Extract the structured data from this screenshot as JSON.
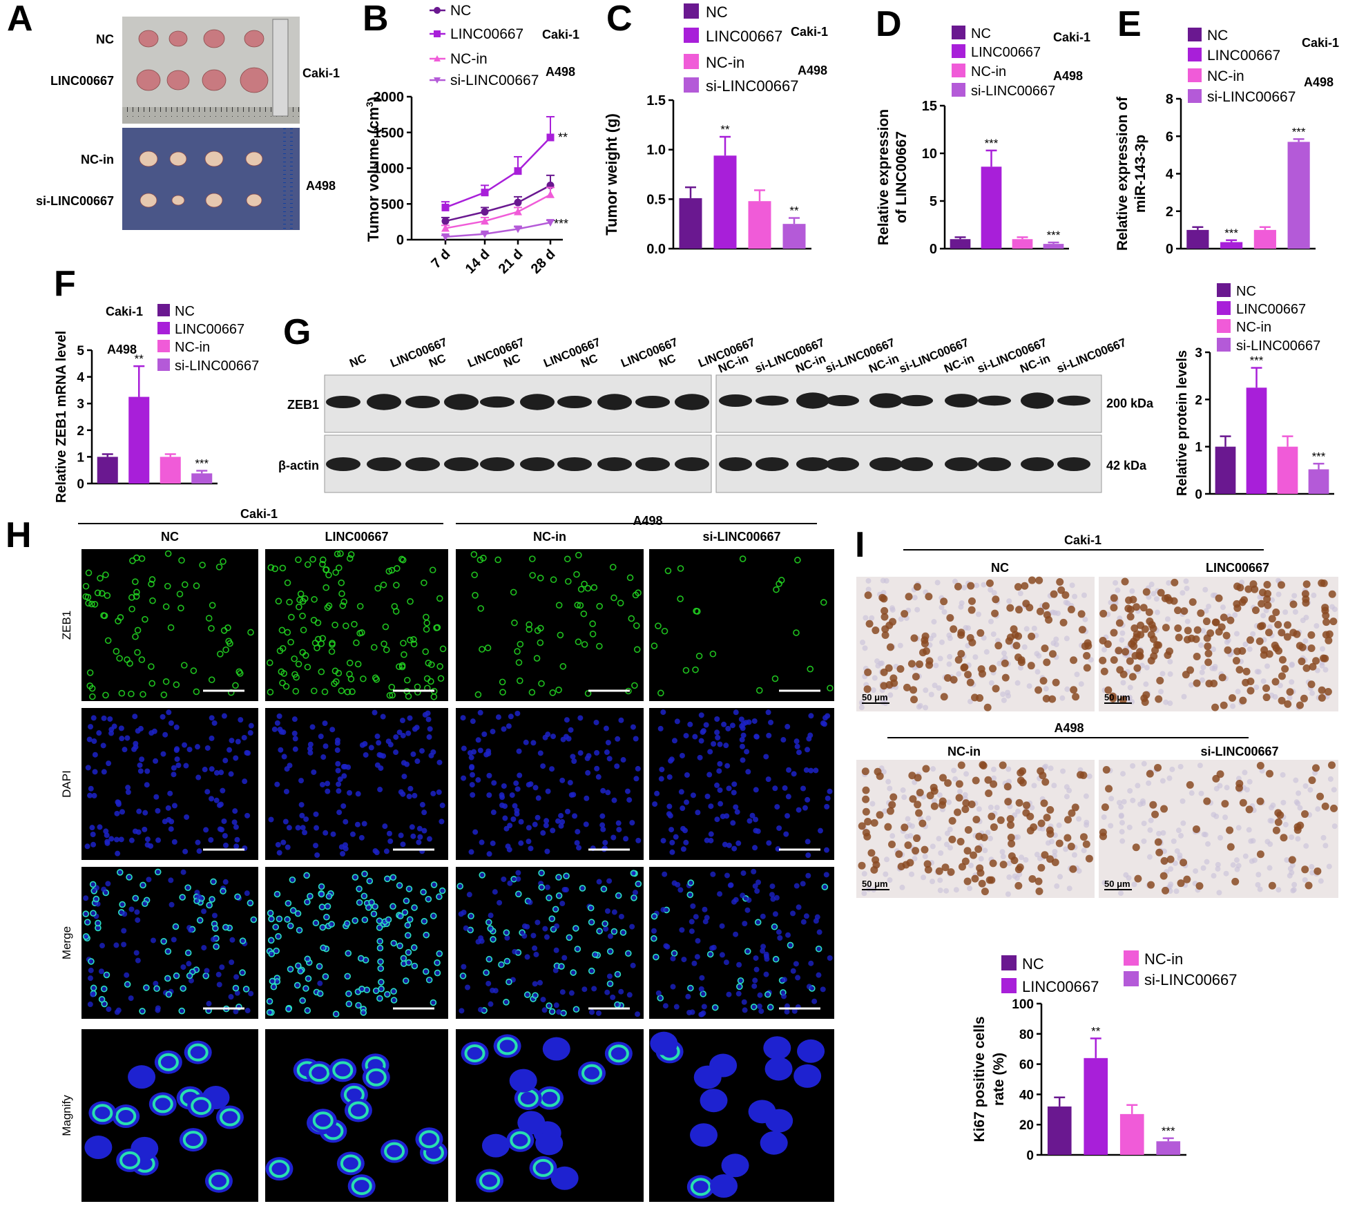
{
  "colors": {
    "NC": "#6a1890",
    "LINC00667": "#a81fd9",
    "NC-in": "#f05bd8",
    "si-LINC00667": "#b45ad8",
    "text": "#000000",
    "green_fluor": "#22d622",
    "blue_fluor": "#1c22e0",
    "ihc_brown": "#8a4a22"
  },
  "icons": [
    "scale-ruler-icon",
    "tumor-icon",
    "western-band-icon"
  ],
  "panels": {
    "A": {
      "letter": "A",
      "rows": [
        "NC",
        "LINC00667",
        "NC-in",
        "si-LINC00667"
      ],
      "cell_lines": [
        "Caki-1",
        "A498"
      ]
    },
    "G": {
      "letter": "G",
      "lanes_left": [
        "NC",
        "LINC00667",
        "NC",
        "LINC00667",
        "NC",
        "LINC00667",
        "NC",
        "LINC00667",
        "NC",
        "LINC00667"
      ],
      "lanes_right": [
        "NC-in",
        "si-LINC00667",
        "NC-in",
        "si-LINC00667",
        "NC-in",
        "si-LINC00667",
        "NC-in",
        "si-LINC00667",
        "NC-in",
        "si-LINC00667"
      ],
      "rows": [
        "ZEB1",
        "β-actin"
      ],
      "sizes": [
        "200 kDa",
        "42 kDa"
      ]
    },
    "H": {
      "letter": "H",
      "cell_lines": [
        "Caki-1",
        "A498"
      ],
      "columns": [
        "NC",
        "LINC00667",
        "NC-in",
        "si-LINC00667"
      ],
      "rows": [
        "ZEB1",
        "DAPI",
        "Merge",
        "Magnify"
      ]
    },
    "I": {
      "letter": "I",
      "cell_lines": [
        "Caki-1",
        "A498"
      ],
      "columns_top": [
        "NC",
        "LINC00667"
      ],
      "columns_bottom": [
        "NC-in",
        "si-LINC00667"
      ],
      "scale": "50 μm"
    }
  },
  "chart_data": [
    {
      "id": "B",
      "letter": "B",
      "type": "line",
      "x": [
        "7 d",
        "14 d",
        "21 d",
        "28 d"
      ],
      "ylabel": "Tumor volume (cm3)",
      "ylabel_main": "Tumor volume (cm",
      "ylabel_sup": "3",
      "ylabel_end": ")",
      "ylim": [
        0,
        2000
      ],
      "yticks": [
        "0",
        "500",
        "1000",
        "1500",
        "2000"
      ],
      "legend": [
        "NC",
        "LINC00667",
        "NC-in",
        "si-LINC00667"
      ],
      "legend_groups": [
        "Caki-1",
        "A498"
      ],
      "series": [
        {
          "name": "NC",
          "values": [
            260,
            390,
            520,
            760
          ],
          "err": [
            50,
            60,
            80,
            140
          ]
        },
        {
          "name": "LINC00667",
          "values": [
            450,
            660,
            960,
            1430
          ],
          "err": [
            80,
            100,
            200,
            290
          ]
        },
        {
          "name": "NC-in",
          "values": [
            160,
            260,
            390,
            630
          ],
          "err": [
            40,
            50,
            60,
            100
          ]
        },
        {
          "name": "si-LINC00667",
          "values": [
            40,
            80,
            150,
            240
          ],
          "err": [
            20,
            20,
            30,
            30
          ]
        }
      ],
      "sig": [
        "**",
        "***"
      ]
    },
    {
      "id": "C",
      "letter": "C",
      "type": "bar",
      "categories": [
        "NC",
        "LINC00667",
        "NC-in",
        "si-LINC00667"
      ],
      "values": [
        0.51,
        0.94,
        0.48,
        0.25
      ],
      "err": [
        0.11,
        0.19,
        0.11,
        0.06
      ],
      "sig": [
        "",
        "**",
        "",
        "**"
      ],
      "ylabel": "Tumor weight (g)",
      "ylim": [
        0,
        1.5
      ],
      "yticks": [
        "0.0",
        "0.5",
        "1.0",
        "1.5"
      ],
      "legend_groups": [
        "Caki-1",
        "A498"
      ]
    },
    {
      "id": "D",
      "letter": "D",
      "type": "bar",
      "categories": [
        "NC",
        "LINC00667",
        "NC-in",
        "si-LINC00667"
      ],
      "values": [
        1.0,
        8.6,
        1.0,
        0.5
      ],
      "err": [
        0.2,
        1.7,
        0.2,
        0.15
      ],
      "sig": [
        "",
        "***",
        "",
        "***"
      ],
      "ylabel_lines": [
        "Relative expression",
        "of LINC00667"
      ],
      "ylim": [
        0,
        15
      ],
      "yticks": [
        "0",
        "5",
        "10",
        "15"
      ],
      "legend_groups": [
        "Caki-1",
        "A498"
      ]
    },
    {
      "id": "E",
      "letter": "E",
      "type": "bar",
      "categories": [
        "NC",
        "LINC00667",
        "NC-in",
        "si-LINC00667"
      ],
      "values": [
        1.0,
        0.35,
        1.0,
        5.7
      ],
      "err": [
        0.15,
        0.1,
        0.15,
        0.15
      ],
      "sig": [
        "",
        "***",
        "",
        "***"
      ],
      "ylabel_lines": [
        "Relative expression of",
        "miR-143-3p"
      ],
      "ylim": [
        0,
        8
      ],
      "yticks": [
        "0",
        "2",
        "4",
        "6",
        "8"
      ],
      "legend_groups": [
        "Caki-1",
        "A498"
      ]
    },
    {
      "id": "F",
      "letter": "F",
      "type": "bar",
      "categories": [
        "NC",
        "LINC00667",
        "NC-in",
        "si-LINC00667"
      ],
      "values": [
        1.0,
        3.25,
        1.0,
        0.38
      ],
      "err": [
        0.1,
        1.15,
        0.1,
        0.1
      ],
      "sig": [
        "",
        "**",
        "",
        "***"
      ],
      "ylabel": "Relative ZEB1 mRNA level",
      "ylim": [
        0,
        5
      ],
      "yticks": [
        "0",
        "1",
        "2",
        "3",
        "4",
        "5"
      ],
      "legend_groups": [
        "Caki-1",
        "A498"
      ]
    },
    {
      "id": "G2",
      "type": "bar",
      "categories": [
        "NC",
        "LINC00667",
        "NC-in",
        "si-LINC00667"
      ],
      "values": [
        1.0,
        2.25,
        1.0,
        0.52
      ],
      "err": [
        0.22,
        0.42,
        0.22,
        0.12
      ],
      "sig": [
        "",
        "***",
        "",
        "***"
      ],
      "ylabel": "Relative protein levels",
      "ylim": [
        0,
        3
      ],
      "yticks": [
        "0",
        "1",
        "2",
        "3"
      ]
    },
    {
      "id": "I2",
      "type": "bar",
      "categories": [
        "NC",
        "LINC00667",
        "NC-in",
        "si-LINC00667"
      ],
      "values": [
        32,
        64,
        27,
        9
      ],
      "err": [
        6,
        13,
        6,
        2
      ],
      "sig": [
        "",
        "**",
        "",
        "***"
      ],
      "ylabel_lines": [
        "Ki67 positive cells",
        "rate (%)"
      ],
      "ylim": [
        0,
        100
      ],
      "yticks": [
        "0",
        "20",
        "40",
        "60",
        "80",
        "100"
      ]
    }
  ]
}
